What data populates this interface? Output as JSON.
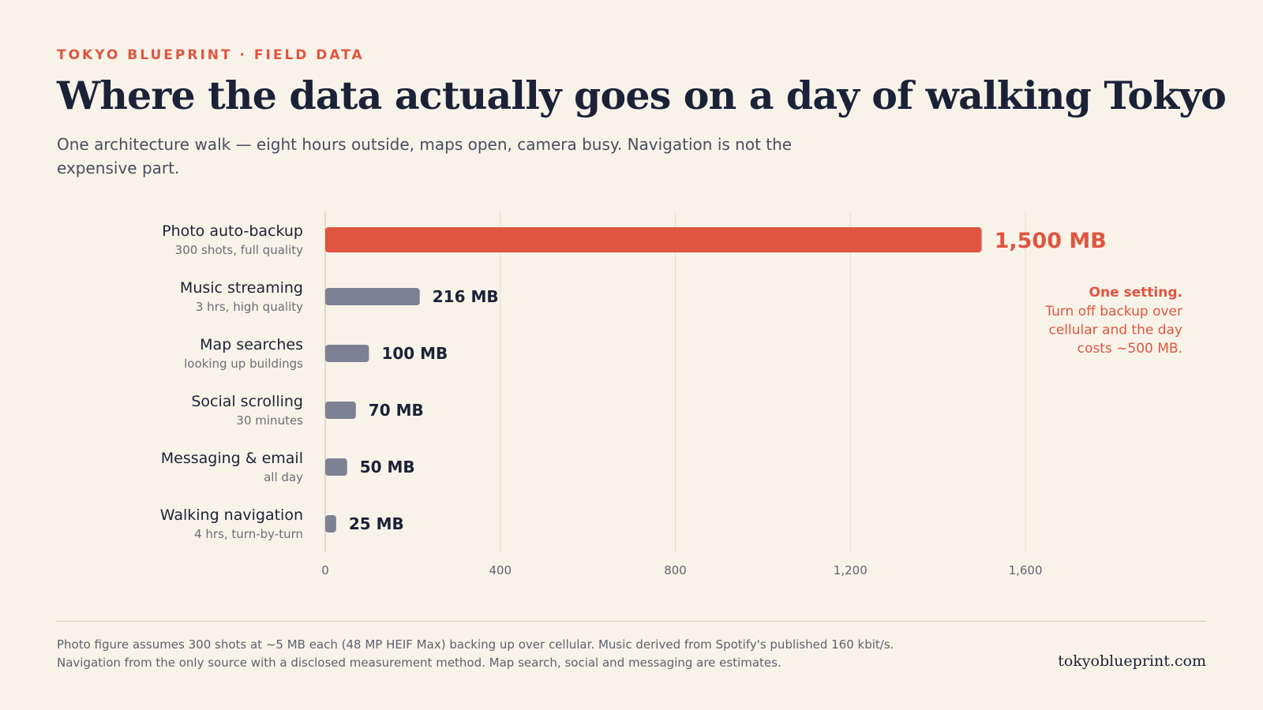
{
  "header": {
    "kicker": "TOKYO BLUEPRINT · FIELD DATA",
    "title": "Where the data actually goes on a day of walking Tokyo",
    "subtitle": "One architecture walk — eight hours outside, maps open, camera busy. Navigation is not the expensive part."
  },
  "chart_data": {
    "type": "bar",
    "orientation": "horizontal",
    "unit": "MB",
    "categories": [
      "Photo auto-backup",
      "Music streaming",
      "Map searches",
      "Social scrolling",
      "Messaging & email",
      "Walking navigation"
    ],
    "sublabels": [
      "300 shots, full quality",
      "3 hrs, high quality",
      "looking up buildings",
      "30 minutes",
      "all day",
      "4 hrs, turn-by-turn"
    ],
    "values": [
      1500,
      216,
      100,
      70,
      50,
      25
    ],
    "value_labels": [
      "1,500 MB",
      "216 MB",
      "100 MB",
      "70 MB",
      "50 MB",
      "25 MB"
    ],
    "xlim": [
      0,
      1600
    ],
    "xticks": [
      0,
      400,
      800,
      1200,
      1600
    ],
    "xtick_labels": [
      "0",
      "400",
      "800",
      "1,200",
      "1,600"
    ],
    "grid": "vertical",
    "highlight_index": 0,
    "colors": {
      "highlight": "#e05540",
      "default": "#7d8193",
      "text": "#1b2238",
      "grid": "#e4ddd0",
      "axis": "#cfc8ba"
    },
    "annotation": {
      "title": "One setting.",
      "lines": [
        "Turn off backup over",
        "cellular and the day",
        "costs ~500 MB."
      ]
    }
  },
  "footer": {
    "note_lines": [
      "Photo figure assumes 300 shots at ~5 MB each (48 MP HEIF Max) backing up over cellular. Music derived from Spotify's published 160 kbit/s.",
      "Navigation from the only source with a disclosed measurement method. Map search, social and messaging are estimates."
    ],
    "brand": "tokyoblueprint.com"
  }
}
